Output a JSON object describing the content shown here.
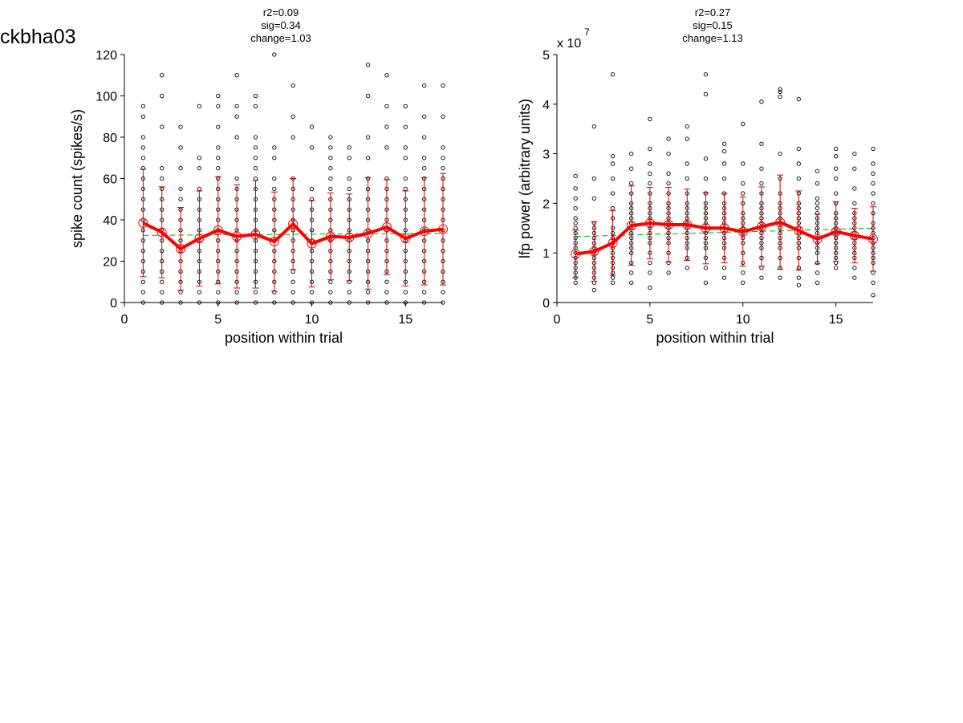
{
  "figure_label": "ckbha03",
  "chart_data": [
    {
      "type": "scatter",
      "title_lines": [
        "r2=0.09",
        "sig=0.34",
        "change=1.03"
      ],
      "xlabel": "position within trial",
      "ylabel": "spike count (spikes/s)",
      "xlim": [
        0,
        17
      ],
      "ylim": [
        0,
        120
      ],
      "xticks": [
        0,
        5,
        10,
        15
      ],
      "yticks": [
        0,
        20,
        40,
        60,
        80,
        100,
        120
      ],
      "exponent_label": null,
      "grid": false,
      "colors": {
        "points": "#000000",
        "mean_line": "#ff0000",
        "error_bars": "#cc0000",
        "fit_line": "#00aa00"
      },
      "points": [
        {
          "x": 1,
          "y": [
            0,
            5,
            10,
            15,
            20,
            25,
            30,
            35,
            40,
            45,
            50,
            55,
            60,
            65,
            70,
            75,
            80,
            90,
            95
          ]
        },
        {
          "x": 2,
          "y": [
            0,
            5,
            10,
            15,
            20,
            25,
            30,
            35,
            40,
            45,
            50,
            55,
            60,
            65,
            85,
            100,
            110
          ]
        },
        {
          "x": 3,
          "y": [
            0,
            5,
            10,
            15,
            20,
            25,
            30,
            35,
            40,
            45,
            50,
            55,
            65,
            75,
            85
          ]
        },
        {
          "x": 4,
          "y": [
            0,
            5,
            10,
            15,
            20,
            25,
            30,
            35,
            40,
            45,
            50,
            55,
            65,
            70,
            95
          ]
        },
        {
          "x": 5,
          "y": [
            0,
            5,
            10,
            15,
            20,
            25,
            30,
            35,
            40,
            45,
            50,
            55,
            60,
            65,
            70,
            75,
            85,
            95,
            100
          ]
        },
        {
          "x": 6,
          "y": [
            0,
            5,
            10,
            15,
            20,
            25,
            30,
            35,
            40,
            45,
            50,
            55,
            60,
            80,
            90,
            95,
            110
          ]
        },
        {
          "x": 7,
          "y": [
            0,
            5,
            10,
            15,
            20,
            25,
            30,
            35,
            40,
            45,
            50,
            55,
            60,
            65,
            70,
            75,
            80,
            95,
            100
          ]
        },
        {
          "x": 8,
          "y": [
            0,
            5,
            10,
            15,
            20,
            25,
            30,
            35,
            40,
            45,
            50,
            55,
            60,
            70,
            75,
            120
          ]
        },
        {
          "x": 9,
          "y": [
            0,
            5,
            10,
            15,
            20,
            25,
            30,
            35,
            40,
            45,
            50,
            55,
            60,
            80,
            90,
            105
          ]
        },
        {
          "x": 10,
          "y": [
            0,
            5,
            10,
            15,
            20,
            25,
            30,
            35,
            40,
            45,
            50,
            55,
            75,
            85
          ]
        },
        {
          "x": 11,
          "y": [
            0,
            5,
            10,
            15,
            20,
            25,
            30,
            35,
            40,
            45,
            50,
            55,
            60,
            65,
            70,
            75,
            80
          ]
        },
        {
          "x": 12,
          "y": [
            0,
            5,
            10,
            15,
            20,
            25,
            30,
            35,
            40,
            45,
            50,
            55,
            60,
            70,
            75
          ]
        },
        {
          "x": 13,
          "y": [
            0,
            5,
            10,
            15,
            20,
            25,
            30,
            35,
            40,
            45,
            50,
            55,
            60,
            70,
            80,
            100,
            115
          ]
        },
        {
          "x": 14,
          "y": [
            0,
            5,
            10,
            15,
            20,
            25,
            30,
            35,
            40,
            45,
            50,
            55,
            60,
            75,
            85,
            95,
            110
          ]
        },
        {
          "x": 15,
          "y": [
            0,
            5,
            10,
            15,
            20,
            25,
            30,
            35,
            40,
            45,
            50,
            55,
            60,
            70,
            75,
            85,
            95
          ]
        },
        {
          "x": 16,
          "y": [
            0,
            5,
            10,
            15,
            20,
            25,
            30,
            35,
            40,
            45,
            50,
            55,
            60,
            65,
            70,
            80,
            90,
            105
          ]
        },
        {
          "x": 17,
          "y": [
            0,
            5,
            10,
            15,
            20,
            25,
            30,
            35,
            40,
            45,
            50,
            55,
            60,
            65,
            70,
            75,
            90,
            105
          ]
        }
      ],
      "mean": [
        38.5,
        34,
        26,
        31,
        35,
        32,
        33,
        29.5,
        38,
        28.5,
        32,
        31.5,
        33.5,
        36.5,
        31,
        34.5,
        35.5
      ],
      "sd": [
        26,
        22,
        20,
        23,
        26,
        25,
        26,
        24,
        22,
        21,
        21,
        21,
        27,
        23,
        23,
        26,
        27
      ],
      "fit_line": {
        "x": [
          1,
          17
        ],
        "y": [
          32.5,
          33.5
        ]
      }
    },
    {
      "type": "scatter",
      "title_lines": [
        "r2=0.27",
        "sig=0.15",
        "change=1.13"
      ],
      "xlabel": "position within trial",
      "ylabel": "lfp power (arbitrary units)",
      "xlim": [
        0,
        17
      ],
      "ylim": [
        0,
        5
      ],
      "xticks": [
        0,
        5,
        10,
        15
      ],
      "yticks": [
        0,
        1,
        2,
        3,
        4,
        5
      ],
      "exponent_label": "x 10",
      "exponent_power": "7",
      "grid": false,
      "colors": {
        "points": "#000000",
        "mean_line": "#ff0000",
        "error_bars": "#cc0000",
        "fit_line": "#00aa00"
      },
      "points": [
        {
          "x": 1,
          "y": [
            0.4,
            0.5,
            0.6,
            0.7,
            0.8,
            0.9,
            1.0,
            1.1,
            1.2,
            1.3,
            1.4,
            1.5,
            1.6,
            1.7,
            1.9,
            2.1,
            2.3,
            2.55
          ]
        },
        {
          "x": 2,
          "y": [
            0.25,
            0.4,
            0.5,
            0.6,
            0.7,
            0.8,
            0.9,
            1.0,
            1.1,
            1.2,
            1.3,
            1.4,
            1.5,
            1.6,
            2.1,
            2.5,
            3.55
          ]
        },
        {
          "x": 3,
          "y": [
            0.4,
            0.5,
            0.6,
            0.7,
            0.8,
            0.9,
            1.0,
            1.1,
            1.2,
            1.3,
            1.4,
            1.5,
            1.7,
            1.9,
            2.2,
            2.5,
            2.8,
            2.95,
            4.6
          ]
        },
        {
          "x": 4,
          "y": [
            0.4,
            0.6,
            0.8,
            1.0,
            1.1,
            1.2,
            1.3,
            1.4,
            1.5,
            1.6,
            1.7,
            1.8,
            1.9,
            2.0,
            2.2,
            2.4,
            2.7,
            3.0
          ]
        },
        {
          "x": 5,
          "y": [
            0.3,
            0.6,
            0.8,
            1.0,
            1.2,
            1.3,
            1.4,
            1.5,
            1.6,
            1.7,
            1.8,
            1.9,
            2.0,
            2.2,
            2.4,
            2.6,
            2.8,
            3.1,
            3.7
          ]
        },
        {
          "x": 6,
          "y": [
            0.6,
            0.8,
            1.0,
            1.2,
            1.3,
            1.4,
            1.5,
            1.6,
            1.7,
            1.8,
            1.9,
            2.0,
            2.2,
            2.4,
            2.6,
            3.0,
            3.3
          ]
        },
        {
          "x": 7,
          "y": [
            0.7,
            0.9,
            1.1,
            1.2,
            1.3,
            1.4,
            1.5,
            1.6,
            1.7,
            1.8,
            1.9,
            2.0,
            2.2,
            2.5,
            2.8,
            3.3,
            3.55
          ]
        },
        {
          "x": 8,
          "y": [
            0.4,
            0.7,
            0.9,
            1.1,
            1.2,
            1.3,
            1.4,
            1.5,
            1.6,
            1.7,
            1.8,
            1.9,
            2.0,
            2.2,
            2.5,
            2.9,
            4.2,
            4.6
          ]
        },
        {
          "x": 9,
          "y": [
            0.5,
            0.7,
            0.9,
            1.1,
            1.2,
            1.3,
            1.4,
            1.5,
            1.6,
            1.7,
            1.8,
            1.9,
            2.0,
            2.2,
            2.5,
            2.8,
            3.05,
            3.2
          ]
        },
        {
          "x": 10,
          "y": [
            0.4,
            0.6,
            0.8,
            1.0,
            1.2,
            1.3,
            1.4,
            1.5,
            1.6,
            1.7,
            1.8,
            2.0,
            2.2,
            2.4,
            2.8,
            3.6
          ]
        },
        {
          "x": 11,
          "y": [
            0.5,
            0.7,
            0.9,
            1.1,
            1.2,
            1.3,
            1.4,
            1.5,
            1.6,
            1.7,
            1.8,
            1.9,
            2.0,
            2.2,
            2.4,
            2.7,
            3.2,
            4.05
          ]
        },
        {
          "x": 12,
          "y": [
            0.5,
            0.7,
            0.9,
            1.1,
            1.2,
            1.3,
            1.4,
            1.5,
            1.6,
            1.7,
            1.8,
            1.9,
            2.0,
            2.2,
            2.5,
            3.0,
            4.15,
            4.25,
            4.3
          ]
        },
        {
          "x": 13,
          "y": [
            0.35,
            0.5,
            0.7,
            0.9,
            1.1,
            1.2,
            1.3,
            1.4,
            1.5,
            1.6,
            1.7,
            1.8,
            1.9,
            2.0,
            2.2,
            2.5,
            2.8,
            3.1,
            4.1
          ]
        },
        {
          "x": 14,
          "y": [
            0.4,
            0.6,
            0.8,
            1.0,
            1.1,
            1.2,
            1.3,
            1.4,
            1.5,
            1.6,
            1.7,
            1.8,
            1.9,
            2.0,
            2.1,
            2.4,
            2.65
          ]
        },
        {
          "x": 15,
          "y": [
            0.7,
            0.8,
            0.9,
            1.0,
            1.1,
            1.2,
            1.3,
            1.4,
            1.5,
            1.6,
            1.7,
            1.8,
            2.0,
            2.2,
            2.5,
            2.7,
            2.95,
            3.1
          ]
        },
        {
          "x": 16,
          "y": [
            0.5,
            0.7,
            0.9,
            1.0,
            1.1,
            1.2,
            1.3,
            1.4,
            1.5,
            1.6,
            1.7,
            1.8,
            2.0,
            2.3,
            2.7,
            3.0
          ]
        },
        {
          "x": 17,
          "y": [
            0.15,
            0.4,
            0.6,
            0.8,
            0.9,
            1.0,
            1.1,
            1.2,
            1.3,
            1.4,
            1.5,
            1.6,
            1.8,
            2.0,
            2.2,
            2.4,
            2.6,
            2.8,
            3.1
          ]
        }
      ],
      "mean": [
        0.98,
        1.03,
        1.2,
        1.55,
        1.6,
        1.57,
        1.57,
        1.5,
        1.5,
        1.43,
        1.53,
        1.62,
        1.45,
        1.28,
        1.43,
        1.35,
        1.28
      ],
      "sd": [
        0.48,
        0.6,
        0.65,
        0.8,
        0.72,
        0.75,
        0.72,
        0.72,
        0.7,
        0.7,
        0.8,
        0.95,
        0.8,
        0.5,
        0.6,
        0.55,
        0.65
      ],
      "fit_line": {
        "x": [
          1,
          17
        ],
        "y": [
          1.33,
          1.5
        ]
      }
    }
  ]
}
